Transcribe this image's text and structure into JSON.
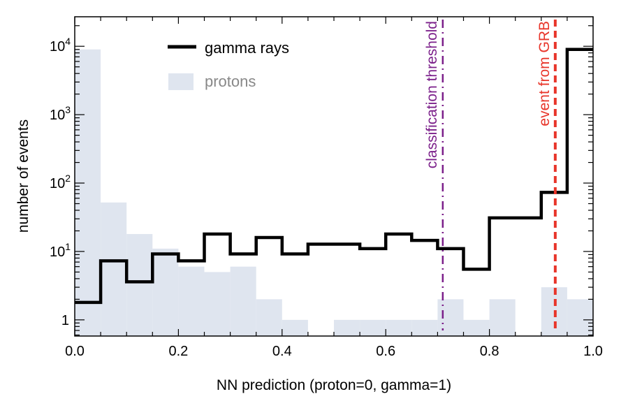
{
  "chart_data": {
    "type": "bar",
    "xlabel": "NN prediction (proton=0, gamma=1)",
    "ylabel": "number of events",
    "xlim": [
      0,
      1
    ],
    "ylim": [
      0.58,
      27000
    ],
    "yscale": "log",
    "bin_edges": [
      0,
      0.05,
      0.1,
      0.15,
      0.2,
      0.25,
      0.3,
      0.35,
      0.4,
      0.45,
      0.5,
      0.55,
      0.6,
      0.65,
      0.7,
      0.75,
      0.8,
      0.85,
      0.9,
      0.95,
      1.0
    ],
    "x_ticks": [
      "0.0",
      "0.2",
      "0.4",
      "0.6",
      "0.8",
      "1.0"
    ],
    "y_ticks": [
      {
        "value": 1,
        "base": "1",
        "exp": ""
      },
      {
        "value": 10,
        "base": "10",
        "exp": "1"
      },
      {
        "value": 100,
        "base": "10",
        "exp": "2"
      },
      {
        "value": 1000,
        "base": "10",
        "exp": "3"
      },
      {
        "value": 10000,
        "base": "10",
        "exp": "4"
      }
    ],
    "series": [
      {
        "name": "gamma rays",
        "style": "step",
        "color": "#000000",
        "values": [
          1.8,
          7.3,
          3.6,
          9.2,
          7.3,
          18,
          9.2,
          16,
          9.2,
          12.8,
          12.8,
          11,
          18,
          14.5,
          11,
          5.5,
          31,
          31,
          73,
          9000
        ]
      },
      {
        "name": "protons",
        "style": "filled",
        "color": "#dfe5ef",
        "values": [
          9000,
          52,
          18,
          11,
          6,
          5,
          6,
          2,
          1,
          0,
          1,
          1,
          1,
          1,
          2,
          1,
          2,
          0,
          3,
          2
        ]
      }
    ],
    "vlines": [
      {
        "label": "classification threshold",
        "x": 0.71,
        "color": "#7b1f8a",
        "style": "dashdot"
      },
      {
        "label": "event from GRB",
        "x": 0.927,
        "color": "#e8352a",
        "style": "dashed"
      }
    ],
    "legend": "top-left",
    "grid": false
  }
}
